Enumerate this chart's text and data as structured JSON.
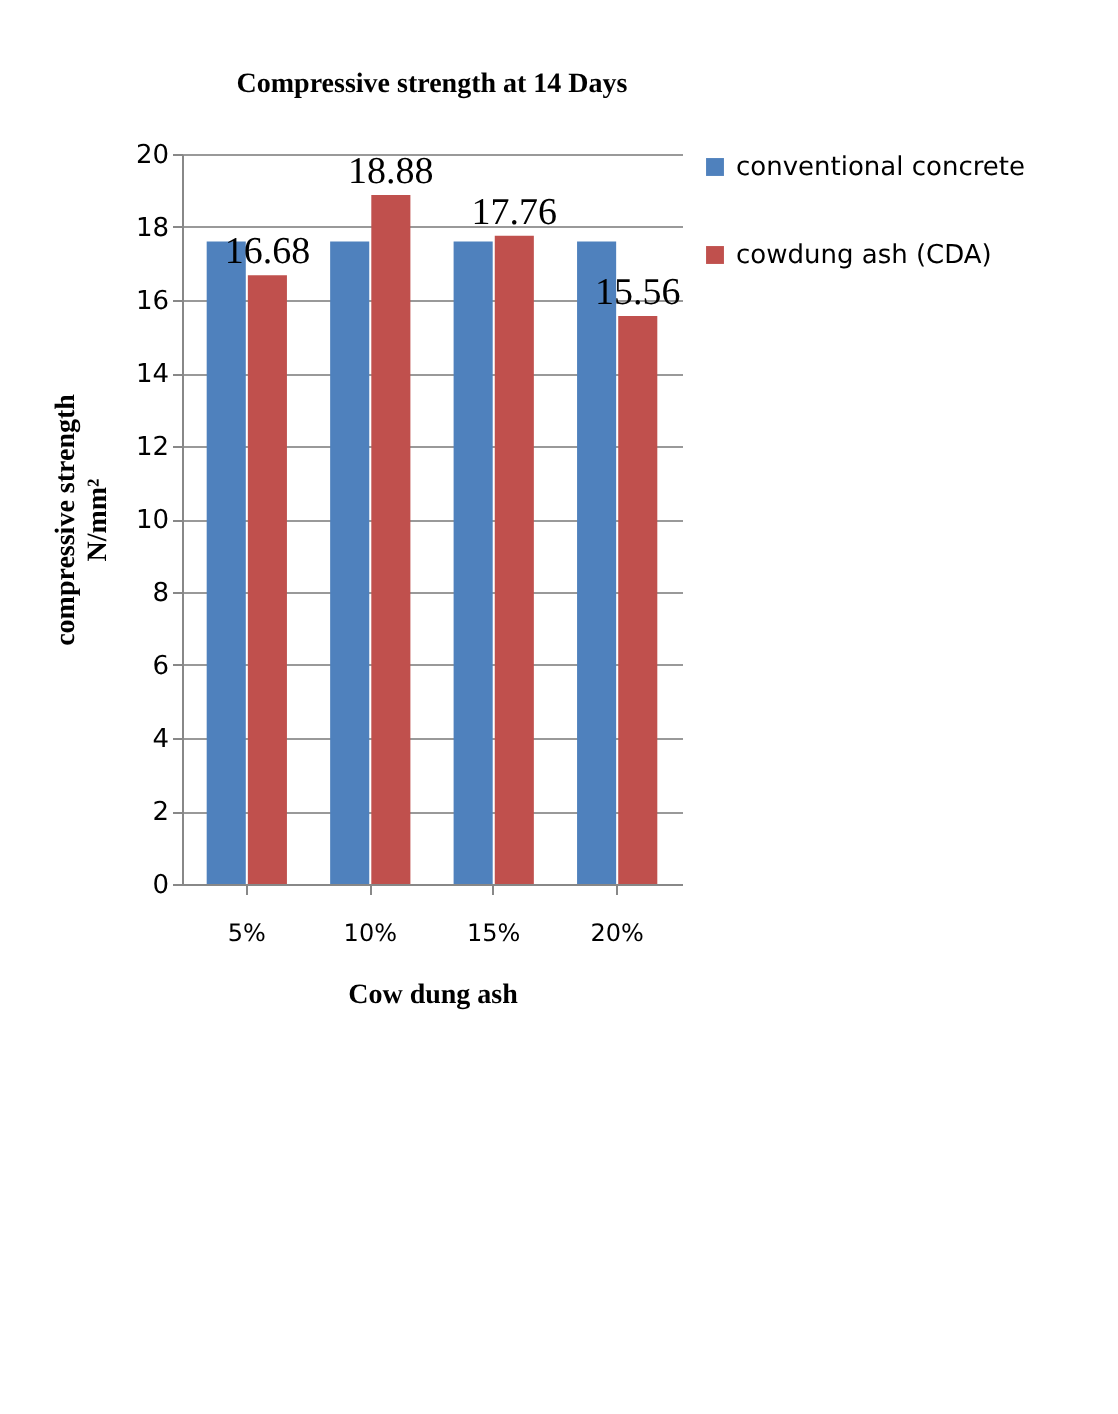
{
  "chart_data": {
    "type": "bar",
    "title": "Compressive strength at 14 Days",
    "xlabel": "Cow dung ash",
    "ylabel": "compressive strength N/mm²",
    "categories": [
      "5%",
      "10%",
      "15%",
      "20%"
    ],
    "series": [
      {
        "name": "conventional concrete",
        "color": "#4f81bd",
        "values": [
          17.6,
          17.6,
          17.6,
          17.6
        ]
      },
      {
        "name": "cowdung ash (CDA)",
        "color": "#c0504d",
        "values": [
          16.68,
          18.88,
          17.76,
          15.56
        ],
        "value_labels": [
          "16.68",
          "18.88",
          "17.76",
          "15.56"
        ]
      }
    ],
    "ylim": [
      0,
      20
    ],
    "yticks": [
      0,
      2,
      4,
      6,
      8,
      10,
      12,
      14,
      16,
      18,
      20
    ],
    "grid": "y",
    "legend": "right"
  }
}
